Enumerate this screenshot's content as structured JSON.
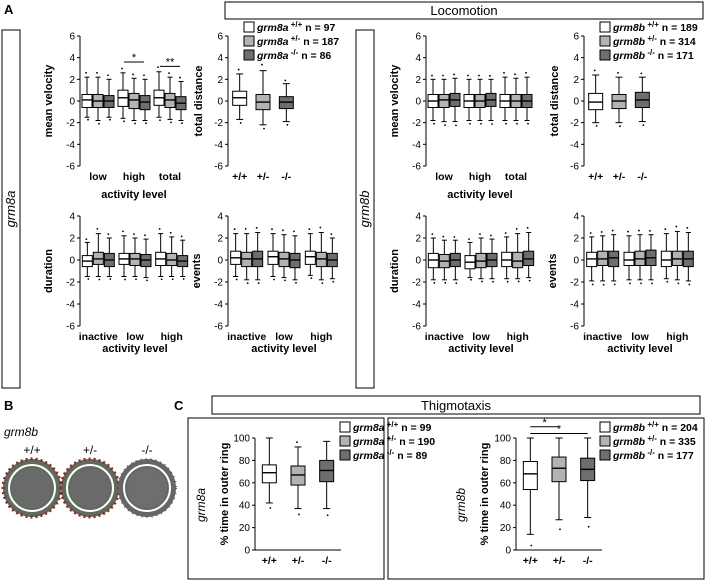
{
  "panel_letters": {
    "a": "A",
    "b": "B",
    "c": "C"
  },
  "section_titles": {
    "locomotion": "Locomotion",
    "thigmotaxis": "Thigmotaxis"
  },
  "gene_labels": {
    "grm8a": "grm8a",
    "grm8b": "grm8b"
  },
  "genotypes": {
    "wt": "+/+",
    "het": "+/-",
    "hom": "-/-"
  },
  "fill_colors": {
    "wt": "#ffffff",
    "het": "#b3b3b3",
    "hom": "#6e6e6e"
  },
  "legends": {
    "loco_a": [
      {
        "gene": "grm8a",
        "sup": "+/+",
        "n": "n = 97"
      },
      {
        "gene": "grm8a",
        "sup": "+/-",
        "n": "n = 187"
      },
      {
        "gene": "grm8a",
        "sup": "-/-",
        "n": "n = 86"
      }
    ],
    "loco_b": [
      {
        "gene": "grm8b",
        "sup": "+/+",
        "n": "n = 189"
      },
      {
        "gene": "grm8b",
        "sup": "+/-",
        "n": "n = 314"
      },
      {
        "gene": "grm8b",
        "sup": "-/-",
        "n": "n = 171"
      }
    ],
    "thig_a": [
      {
        "gene": "grm8a",
        "sup": "+/+",
        "n": "n = 99"
      },
      {
        "gene": "grm8a",
        "sup": "+/-",
        "n": "n = 190"
      },
      {
        "gene": "grm8a",
        "sup": "-/-",
        "n": "n = 89"
      }
    ],
    "thig_b": [
      {
        "gene": "grm8b",
        "sup": "+/+",
        "n": "n = 204"
      },
      {
        "gene": "grm8b",
        "sup": "+/-",
        "n": "n = 335"
      },
      {
        "gene": "grm8b",
        "sup": "-/-",
        "n": "n = 177"
      }
    ]
  },
  "panel_b": {
    "gene": "grm8b",
    "labels": [
      "+/+",
      "+/-",
      "-/-"
    ]
  },
  "chart_data": [
    {
      "id": "a_mv",
      "type": "box",
      "ylabel": "mean velocity",
      "xlabel": "activity level",
      "ylim": [
        -6,
        6
      ],
      "yticks": [
        -6,
        -4,
        -2,
        0,
        2,
        4,
        6
      ],
      "categories": [
        "low",
        "high",
        "total"
      ],
      "groups": [
        [
          [
            -1.5,
            -0.6,
            0.1,
            0.6,
            2.2
          ],
          [
            -1.8,
            -0.6,
            0.0,
            0.6,
            2.2
          ],
          [
            -1.5,
            -0.6,
            0.0,
            0.5,
            2.0
          ]
        ],
        [
          [
            -1.6,
            -0.5,
            0.3,
            1.0,
            2.6
          ],
          [
            -1.8,
            -0.7,
            0.1,
            0.7,
            2.1
          ],
          [
            -1.8,
            -0.8,
            -0.1,
            0.5,
            2.0
          ]
        ],
        [
          [
            -1.5,
            -0.4,
            0.3,
            1.0,
            2.7
          ],
          [
            -1.7,
            -0.6,
            0.1,
            0.7,
            2.2
          ],
          [
            -1.8,
            -0.8,
            -0.2,
            0.4,
            1.8
          ]
        ]
      ],
      "annotations": [
        {
          "label": "*",
          "cat": 1,
          "y": 3.6
        },
        {
          "label": "**",
          "cat": 2,
          "y": 3.2
        }
      ]
    },
    {
      "id": "a_td",
      "type": "box",
      "ylabel": "total distance",
      "xlabel": "",
      "ylim": [
        -6,
        6
      ],
      "yticks": [
        -6,
        -4,
        -2,
        0,
        2,
        4,
        6
      ],
      "categories": [
        "+/+",
        "+/-",
        "-/-"
      ],
      "groups": [
        [
          [
            -1.7,
            -0.4,
            0.3,
            0.9,
            2.5
          ]
        ],
        [
          [
            -2.2,
            -0.8,
            -0.1,
            0.6,
            2.8
          ]
        ],
        [
          [
            -1.9,
            -0.7,
            -0.1,
            0.4,
            1.6
          ]
        ]
      ]
    },
    {
      "id": "a_du",
      "type": "box",
      "ylabel": "duration",
      "xlabel": "activity level",
      "ylim": [
        -6,
        4
      ],
      "yticks": [
        -6,
        -4,
        -2,
        0,
        2,
        4
      ],
      "categories": [
        "inactive",
        "low",
        "high"
      ],
      "groups": [
        [
          [
            -1.5,
            -0.6,
            -0.1,
            0.4,
            1.6
          ],
          [
            -1.5,
            -0.4,
            0.1,
            0.7,
            2.4
          ],
          [
            -1.5,
            -0.6,
            0.0,
            0.6,
            2.0
          ]
        ],
        [
          [
            -1.5,
            -0.4,
            0.1,
            0.6,
            2.2
          ],
          [
            -1.5,
            -0.5,
            0.1,
            0.6,
            2.0
          ],
          [
            -1.6,
            -0.6,
            0.0,
            0.5,
            1.9
          ]
        ],
        [
          [
            -1.5,
            -0.5,
            0.1,
            0.7,
            2.4
          ],
          [
            -1.5,
            -0.5,
            0.0,
            0.6,
            2.1
          ],
          [
            -1.5,
            -0.6,
            -0.1,
            0.4,
            1.8
          ]
        ]
      ]
    },
    {
      "id": "a_ev",
      "type": "box",
      "ylabel": "events",
      "xlabel": "activity level",
      "ylim": [
        -6,
        4
      ],
      "yticks": [
        -6,
        -4,
        -2,
        0,
        2,
        4
      ],
      "categories": [
        "inactive",
        "low",
        "high"
      ],
      "groups": [
        [
          [
            -1.5,
            -0.4,
            0.2,
            0.8,
            2.4
          ],
          [
            -1.8,
            -0.6,
            0.1,
            0.7,
            2.4
          ],
          [
            -1.8,
            -0.6,
            0.1,
            0.8,
            2.5
          ]
        ],
        [
          [
            -1.5,
            -0.4,
            0.3,
            0.8,
            2.4
          ],
          [
            -1.6,
            -0.6,
            0.1,
            0.7,
            2.3
          ],
          [
            -1.8,
            -0.7,
            0.0,
            0.6,
            2.2
          ]
        ],
        [
          [
            -1.4,
            -0.4,
            0.3,
            0.8,
            2.4
          ],
          [
            -1.8,
            -0.6,
            0.1,
            0.7,
            2.5
          ],
          [
            -1.7,
            -0.6,
            0.0,
            0.6,
            2.0
          ]
        ]
      ]
    },
    {
      "id": "b_mv",
      "type": "box",
      "ylabel": "mean velocity",
      "xlabel": "activity level",
      "ylim": [
        -6,
        6
      ],
      "yticks": [
        -6,
        -4,
        -2,
        0,
        2,
        4,
        6
      ],
      "categories": [
        "low",
        "high",
        "total"
      ],
      "groups": [
        [
          [
            -1.8,
            -0.6,
            0.0,
            0.6,
            2.0
          ],
          [
            -1.9,
            -0.6,
            0.1,
            0.6,
            2.0
          ],
          [
            -1.9,
            -0.5,
            0.1,
            0.7,
            2.1
          ]
        ],
        [
          [
            -1.8,
            -0.6,
            0.0,
            0.6,
            2.0
          ],
          [
            -1.8,
            -0.6,
            0.0,
            0.6,
            2.0
          ],
          [
            -1.8,
            -0.5,
            0.1,
            0.7,
            2.0
          ]
        ],
        [
          [
            -1.8,
            -0.6,
            0.0,
            0.6,
            2.2
          ],
          [
            -1.8,
            -0.6,
            0.0,
            0.6,
            2.1
          ],
          [
            -1.8,
            -0.6,
            0.0,
            0.6,
            2.2
          ]
        ]
      ]
    },
    {
      "id": "b_td",
      "type": "box",
      "ylabel": "total distance",
      "xlabel": "",
      "ylim": [
        -6,
        6
      ],
      "yticks": [
        -6,
        -4,
        -2,
        0,
        2,
        4,
        6
      ],
      "categories": [
        "+/+",
        "+/-",
        "-/-"
      ],
      "groups": [
        [
          [
            -2.0,
            -0.8,
            -0.1,
            0.7,
            2.4
          ]
        ],
        [
          [
            -2.0,
            -0.7,
            0.0,
            0.6,
            2.2
          ]
        ],
        [
          [
            -1.9,
            -0.6,
            0.1,
            0.8,
            2.2
          ]
        ]
      ]
    },
    {
      "id": "b_du",
      "type": "box",
      "ylabel": "duration",
      "xlabel": "activity level",
      "ylim": [
        -6,
        4
      ],
      "yticks": [
        -6,
        -4,
        -2,
        0,
        2,
        4
      ],
      "categories": [
        "inactive",
        "low",
        "high"
      ],
      "groups": [
        [
          [
            -1.8,
            -0.7,
            0.0,
            0.6,
            2.0
          ],
          [
            -1.8,
            -0.7,
            -0.1,
            0.5,
            1.8
          ],
          [
            -1.8,
            -0.6,
            0.0,
            0.6,
            1.8
          ]
        ],
        [
          [
            -1.6,
            -0.8,
            -0.2,
            0.4,
            1.6
          ],
          [
            -1.7,
            -0.7,
            -0.1,
            0.6,
            2.0
          ],
          [
            -1.7,
            -0.6,
            0.0,
            0.6,
            1.9
          ]
        ],
        [
          [
            -1.7,
            -0.6,
            0.0,
            0.7,
            2.1
          ],
          [
            -1.7,
            -0.7,
            -0.1,
            0.7,
            2.4
          ],
          [
            -1.6,
            -0.5,
            0.1,
            0.8,
            2.5
          ]
        ]
      ]
    },
    {
      "id": "b_ev",
      "type": "box",
      "ylabel": "events",
      "xlabel": "activity level",
      "ylim": [
        -6,
        4
      ],
      "yticks": [
        -6,
        -4,
        -2,
        0,
        2,
        4
      ],
      "categories": [
        "inactive",
        "low",
        "high"
      ],
      "groups": [
        [
          [
            -1.9,
            -0.6,
            0.1,
            0.7,
            2.1
          ],
          [
            -1.9,
            -0.5,
            0.1,
            0.8,
            2.2
          ],
          [
            -1.9,
            -0.6,
            0.2,
            0.8,
            2.3
          ]
        ],
        [
          [
            -1.8,
            -0.5,
            0.0,
            0.7,
            2.2
          ],
          [
            -1.8,
            -0.5,
            0.1,
            0.8,
            2.3
          ],
          [
            -1.8,
            -0.5,
            0.2,
            0.9,
            2.3
          ]
        ],
        [
          [
            -1.7,
            -0.6,
            0.0,
            0.8,
            2.4
          ],
          [
            -1.8,
            -0.5,
            0.1,
            0.8,
            2.6
          ],
          [
            -1.9,
            -0.6,
            0.1,
            0.8,
            2.5
          ]
        ]
      ]
    },
    {
      "id": "c_a",
      "type": "box",
      "ylabel": "% time in outer ring",
      "xlabel": "",
      "ylim": [
        0,
        100
      ],
      "yticks": [
        0,
        20,
        40,
        60,
        80,
        100
      ],
      "categories": [
        "+/+",
        "+/-",
        "-/-"
      ],
      "groups": [
        [
          [
            42,
            60,
            69,
            76,
            100
          ]
        ],
        [
          [
            37,
            58,
            67,
            75,
            92
          ]
        ],
        [
          [
            37,
            61,
            71,
            80,
            97
          ]
        ]
      ]
    },
    {
      "id": "c_b",
      "type": "box",
      "ylabel": "% time in outer ring",
      "xlabel": "",
      "ylim": [
        0,
        100
      ],
      "yticks": [
        0,
        20,
        40,
        60,
        80,
        100
      ],
      "categories": [
        "+/+",
        "+/-",
        "-/-"
      ],
      "groups": [
        [
          [
            14,
            54,
            68,
            79,
            100
          ]
        ],
        [
          [
            27,
            61,
            73,
            83,
            100
          ]
        ],
        [
          [
            29,
            62,
            72,
            82,
            100
          ]
        ]
      ],
      "annotations": [
        {
          "label": "*",
          "from": 0,
          "to": 1,
          "y": 110
        },
        {
          "label": "*",
          "from": 0,
          "to": 2,
          "y": 104
        }
      ]
    }
  ]
}
